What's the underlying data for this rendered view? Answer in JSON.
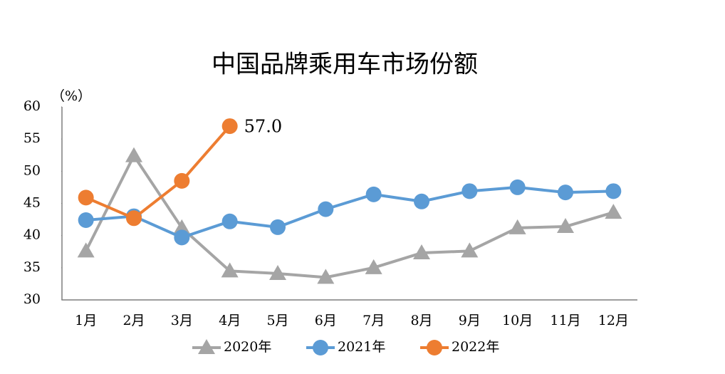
{
  "chart_data": {
    "type": "line",
    "title": "中国品牌乘用车市场份额",
    "y_label": "（%）",
    "categories": [
      "1月",
      "2月",
      "3月",
      "4月",
      "5月",
      "6月",
      "7月",
      "8月",
      "9月",
      "10月",
      "11月",
      "12月"
    ],
    "ylim": [
      30,
      60
    ],
    "yticks": [
      30,
      35,
      40,
      45,
      50,
      55,
      60
    ],
    "grid": false,
    "legend": "bottom",
    "series": [
      {
        "name": "2020年",
        "color": "#a5a5a5",
        "marker": "triangle",
        "values": [
          37.6,
          52.4,
          41.2,
          34.5,
          34.1,
          33.5,
          35.0,
          37.3,
          37.6,
          41.2,
          41.4,
          43.6
        ]
      },
      {
        "name": "2021年",
        "color": "#5b9bd5",
        "marker": "circle",
        "values": [
          42.4,
          43.0,
          39.7,
          42.2,
          41.3,
          44.1,
          46.4,
          45.3,
          46.9,
          47.5,
          46.7,
          46.9
        ]
      },
      {
        "name": "2022年",
        "color": "#ed7d31",
        "marker": "circle",
        "values": [
          45.9,
          42.7,
          48.5,
          57.0,
          null,
          null,
          null,
          null,
          null,
          null,
          null,
          null
        ],
        "value_labels": [
          null,
          null,
          null,
          "57.0",
          null,
          null,
          null,
          null,
          null,
          null,
          null,
          null
        ]
      }
    ]
  }
}
